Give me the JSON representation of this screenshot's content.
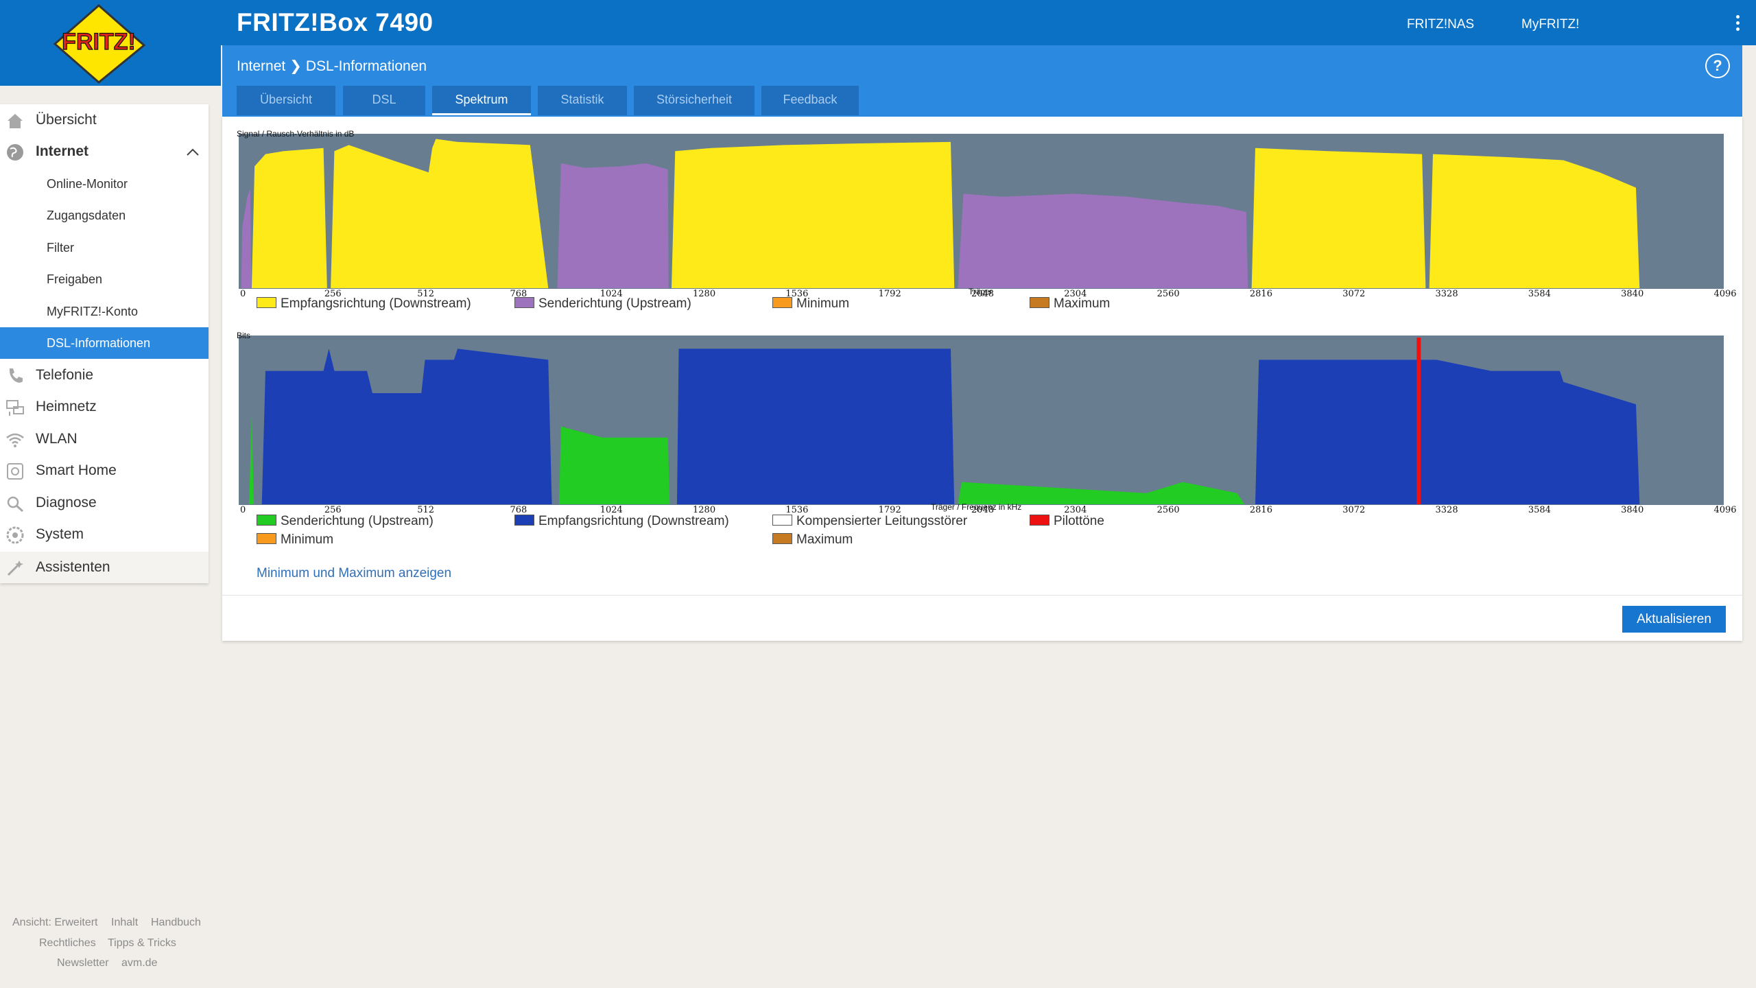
{
  "app": {
    "title": "FRITZ!Box 7490",
    "logo_text": "FRITZ!"
  },
  "header": {
    "links": [
      "FRITZ!NAS",
      "MyFRITZ!"
    ]
  },
  "breadcrumb": {
    "section": "Internet",
    "page": "DSL-Informationen"
  },
  "tabs": [
    {
      "label": "Übersicht",
      "active": false
    },
    {
      "label": "DSL",
      "active": false
    },
    {
      "label": "Spektrum",
      "active": true
    },
    {
      "label": "Statistik",
      "active": false
    },
    {
      "label": "Störsicherheit",
      "active": false
    },
    {
      "label": "Feedback",
      "active": false
    }
  ],
  "sidebar": {
    "items": [
      {
        "label": "Übersicht",
        "icon": "home-icon"
      },
      {
        "label": "Internet",
        "icon": "globe-icon",
        "expanded": true
      },
      {
        "label": "Telefonie",
        "icon": "phone-icon"
      },
      {
        "label": "Heimnetz",
        "icon": "network-icon"
      },
      {
        "label": "WLAN",
        "icon": "wifi-icon"
      },
      {
        "label": "Smart Home",
        "icon": "smarthome-icon"
      },
      {
        "label": "Diagnose",
        "icon": "diagnose-icon"
      },
      {
        "label": "System",
        "icon": "system-icon"
      }
    ],
    "subitems": [
      {
        "label": "Online-Monitor",
        "active": false
      },
      {
        "label": "Zugangsdaten",
        "active": false
      },
      {
        "label": "Filter",
        "active": false
      },
      {
        "label": "Freigaben",
        "active": false
      },
      {
        "label": "MyFRITZ!-Konto",
        "active": false
      },
      {
        "label": "DSL-Informationen",
        "active": true
      }
    ],
    "assistant": {
      "label": "Assistenten",
      "icon": "wand-icon"
    }
  },
  "footer": {
    "row1": [
      "Ansicht: Erweitert",
      "Inhalt",
      "Handbuch"
    ],
    "row2": [
      "Rechtliches",
      "Tipps & Tricks"
    ],
    "row3": [
      "Newsletter",
      "avm.de"
    ]
  },
  "colors": {
    "downstream_snr": "#ffea19",
    "upstream_snr": "#9c73bc",
    "upstream_bits": "#22cc22",
    "downstream_bits": "#1d3fb6",
    "pilot": "#ee1111",
    "plot_bg": "#687d90",
    "minimum": "#f79a1e",
    "maximum": "#c67a22"
  },
  "chart_data": [
    {
      "type": "area",
      "ylabel": "Signal / Rausch-Verhältnis in dB",
      "xlabel": "Träger",
      "xlim": [
        0,
        4096
      ],
      "ylim": [
        0,
        100
      ],
      "x_ticks": [
        "0",
        "256",
        "512",
        "768",
        "1024",
        "1280",
        "1536",
        "1792",
        "2048",
        "2304",
        "2560",
        "2816",
        "3072",
        "3328",
        "3584",
        "3840",
        "4096"
      ],
      "legend": [
        {
          "name": "Empfangsrichtung (Downstream)",
          "color": "#ffea19"
        },
        {
          "name": "Senderichtung (Upstream)",
          "color": "#9c73bc"
        },
        {
          "name": "Minimum",
          "color": "#f79a1e"
        },
        {
          "name": "Maximum",
          "color": "#c67a22"
        }
      ],
      "series": [
        {
          "name": "Empfangsrichtung (Downstream)",
          "color": "#ffea19",
          "segments": [
            [
              [
                32,
                0
              ],
              [
                40,
                80
              ],
              [
                70,
                88
              ],
              [
                120,
                90
              ],
              [
                230,
                92
              ],
              [
                240,
                0
              ]
            ],
            [
              [
                250,
                0
              ],
              [
                260,
                90
              ],
              [
                300,
                94
              ],
              [
                420,
                84
              ],
              [
                520,
                76
              ],
              [
                530,
                92
              ],
              [
                540,
                98
              ],
              [
                600,
                96
              ],
              [
                800,
                94
              ],
              [
                850,
                0
              ]
            ],
            [
              [
                1190,
                0
              ],
              [
                1200,
                90
              ],
              [
                1300,
                92
              ],
              [
                1500,
                94
              ],
              [
                1700,
                95
              ],
              [
                1960,
                96
              ],
              [
                1970,
                0
              ]
            ],
            [
              [
                2790,
                0
              ],
              [
                2800,
                92
              ],
              [
                3000,
                90
              ],
              [
                3260,
                88
              ],
              [
                3270,
                0
              ]
            ],
            [
              [
                3280,
                0
              ],
              [
                3290,
                88
              ],
              [
                3500,
                86
              ],
              [
                3650,
                84
              ],
              [
                3750,
                76
              ],
              [
                3850,
                66
              ],
              [
                3860,
                0
              ]
            ]
          ]
        },
        {
          "name": "Senderichtung (Upstream)",
          "color": "#9c73bc",
          "segments": [
            [
              [
                3,
                0
              ],
              [
                6,
                40
              ],
              [
                20,
                60
              ],
              [
                28,
                65
              ],
              [
                31,
                0
              ]
            ],
            [
              [
                875,
                0
              ],
              [
                885,
                82
              ],
              [
                950,
                79
              ],
              [
                1050,
                80
              ],
              [
                1120,
                82
              ],
              [
                1180,
                78
              ],
              [
                1182,
                0
              ]
            ],
            [
              [
                1980,
                0
              ],
              [
                1995,
                62
              ],
              [
                2100,
                60
              ],
              [
                2300,
                62
              ],
              [
                2450,
                60
              ],
              [
                2600,
                56
              ],
              [
                2700,
                54
              ],
              [
                2775,
                50
              ],
              [
                2780,
                0
              ]
            ]
          ]
        }
      ]
    },
    {
      "type": "area",
      "ylabel": "Bits",
      "xlabel": "Träger / Frequenz in kHz",
      "xlim": [
        0,
        4096
      ],
      "ylim": [
        0,
        15
      ],
      "x_ticks": [
        "0",
        "256",
        "512",
        "768",
        "1024",
        "1280",
        "1536",
        "1792",
        "2048",
        "2304",
        "2560",
        "2816",
        "3072",
        "3328",
        "3584",
        "3840",
        "4096"
      ],
      "legend": [
        {
          "name": "Senderichtung (Upstream)",
          "color": "#22cc22"
        },
        {
          "name": "Empfangsrichtung (Downstream)",
          "color": "#1d3fb6"
        },
        {
          "name": "Kompensierter Leitungsstörer",
          "color": "#ffffff"
        },
        {
          "name": "Pilottöne",
          "color": "#ee1111"
        },
        {
          "name": "Minimum",
          "color": "#f79a1e"
        },
        {
          "name": "Maximum",
          "color": "#c67a22"
        }
      ],
      "series": [
        {
          "name": "Empfangsrichtung (Downstream)",
          "color": "#1d3fb6",
          "segments": [
            [
              [
                60,
                0
              ],
              [
                70,
                12
              ],
              [
                230,
                12
              ],
              [
                245,
                14
              ],
              [
                260,
                12
              ],
              [
                350,
                12
              ],
              [
                365,
                10
              ],
              [
                500,
                10
              ],
              [
                510,
                13
              ],
              [
                590,
                13
              ],
              [
                600,
                14
              ],
              [
                850,
                13
              ],
              [
                860,
                0
              ]
            ],
            [
              [
                1205,
                0
              ],
              [
                1210,
                14
              ],
              [
                1960,
                14
              ],
              [
                1970,
                0
              ]
            ],
            [
              [
                2800,
                0
              ],
              [
                2810,
                13
              ],
              [
                3200,
                13
              ],
              [
                3300,
                13
              ],
              [
                3450,
                12
              ],
              [
                3640,
                12
              ],
              [
                3650,
                11
              ],
              [
                3850,
                9
              ],
              [
                3860,
                0
              ]
            ]
          ]
        },
        {
          "name": "Senderichtung (Upstream)",
          "color": "#22cc22",
          "segments": [
            [
              [
                25,
                0
              ],
              [
                32,
                8
              ],
              [
                38,
                0
              ]
            ],
            [
              [
                880,
                0
              ],
              [
                885,
                7
              ],
              [
                1000,
                6
              ],
              [
                1180,
                6
              ],
              [
                1185,
                0
              ]
            ],
            [
              [
                1980,
                0
              ],
              [
                1990,
                2
              ],
              [
                2500,
                1
              ],
              [
                2600,
                2
              ],
              [
                2750,
                1
              ],
              [
                2770,
                0
              ]
            ]
          ]
        },
        {
          "name": "Pilottöne",
          "color": "#ee1111",
          "lines": [
            3251
          ]
        }
      ]
    }
  ],
  "controls": {
    "minmax_link": "Minimum und Maximum anzeigen",
    "refresh_label": "Aktualisieren"
  }
}
